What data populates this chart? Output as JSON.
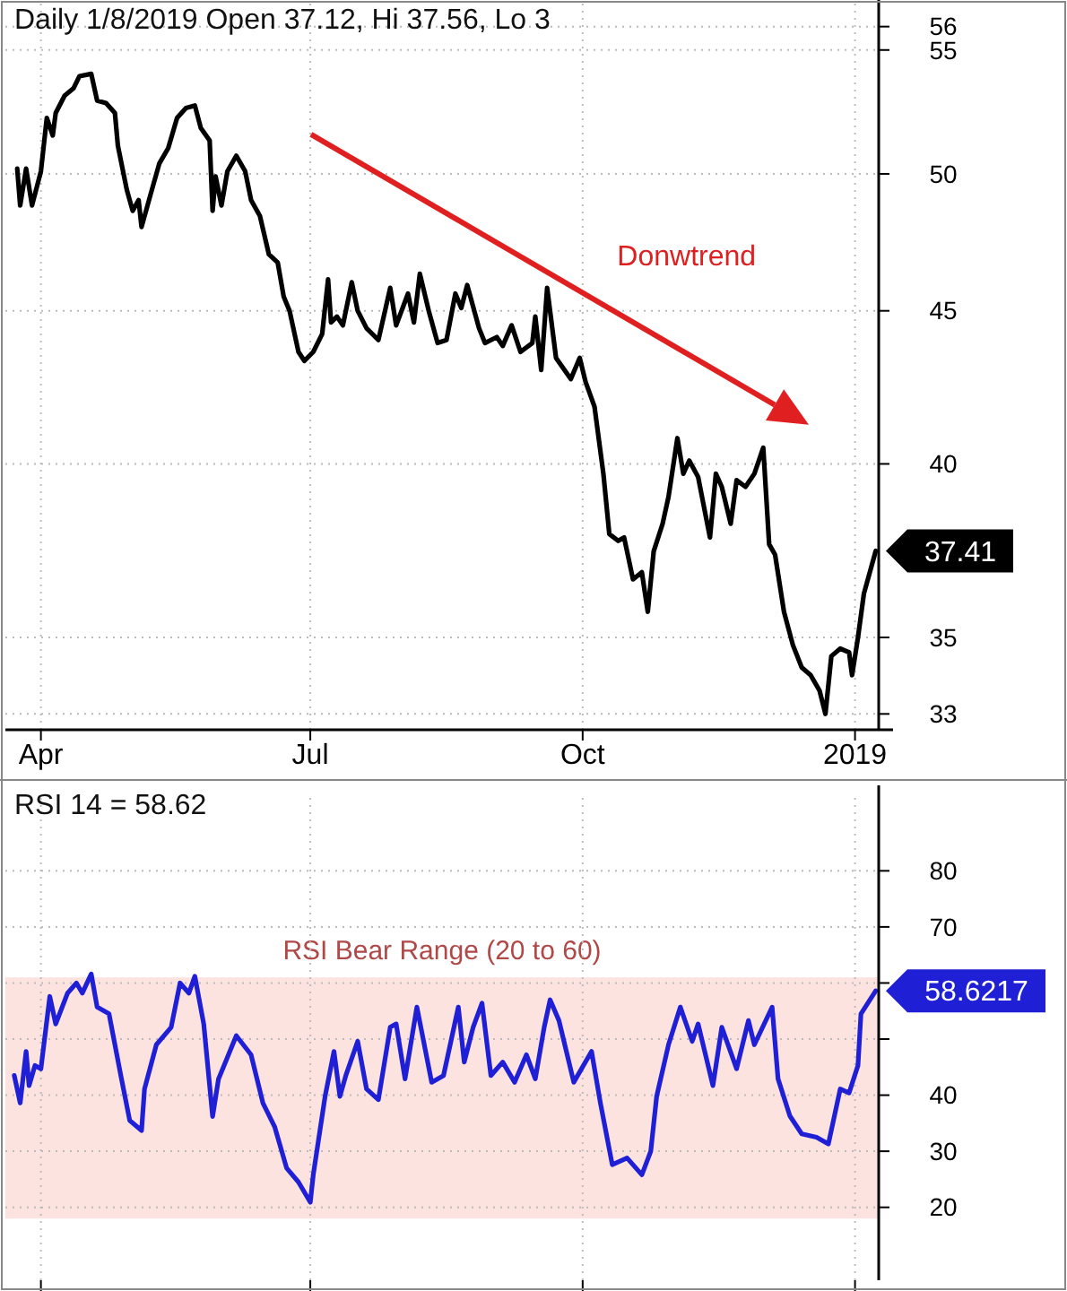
{
  "chart_data": [
    {
      "type": "line",
      "title": "Daily 1/8/2019 Open 37.12, Hi 37.56, Lo 3",
      "log": true,
      "grid": true,
      "xlim": [
        "2018-03-20",
        "2019-01-09"
      ],
      "xticks": [
        {
          "value": "2018-04-01",
          "label": "Apr"
        },
        {
          "value": "2018-07-01",
          "label": "Jul"
        },
        {
          "value": "2018-10-01",
          "label": "Oct"
        },
        {
          "value": "2019-01-01",
          "label": "2019"
        }
      ],
      "ylim": [
        32.6,
        57
      ],
      "yticks": [
        33,
        35,
        40,
        45,
        50,
        55,
        56
      ],
      "annotations": [
        "Donwtrend",
        {
          "text": "37.41",
          "x": "2019-01-08",
          "y": 37.41
        }
      ],
      "series": [
        {
          "color": "#000000",
          "x": [
            "2018-03-24",
            "2018-03-25",
            "2018-03-27",
            "2018-03-29",
            "2018-04-01",
            "2018-04-03",
            "2018-04-05",
            "2018-04-06",
            "2018-04-09",
            "2018-04-12",
            "2018-04-14",
            "2018-04-18",
            "2018-04-20",
            "2018-04-23",
            "2018-04-26",
            "2018-04-27",
            "2018-04-30",
            "2018-05-02",
            "2018-05-04",
            "2018-05-05",
            "2018-05-08",
            "2018-05-11",
            "2018-05-14",
            "2018-05-17",
            "2018-05-20",
            "2018-05-23",
            "2018-05-25",
            "2018-05-28",
            "2018-05-29",
            "2018-05-30",
            "2018-06-01",
            "2018-06-03",
            "2018-06-06",
            "2018-06-09",
            "2018-06-11",
            "2018-06-14",
            "2018-06-17",
            "2018-06-20",
            "2018-06-22",
            "2018-06-24",
            "2018-06-27",
            "2018-06-29",
            "2018-07-02",
            "2018-07-05",
            "2018-07-07",
            "2018-07-08",
            "2018-07-10",
            "2018-07-12",
            "2018-07-15",
            "2018-07-17",
            "2018-07-20",
            "2018-07-24",
            "2018-07-28",
            "2018-07-30",
            "2018-08-03",
            "2018-08-05",
            "2018-08-07",
            "2018-08-10",
            "2018-08-13",
            "2018-08-16",
            "2018-08-19",
            "2018-08-21",
            "2018-08-23",
            "2018-08-27",
            "2018-08-29",
            "2018-09-02",
            "2018-09-04",
            "2018-09-07",
            "2018-09-10",
            "2018-09-14",
            "2018-09-15",
            "2018-09-17",
            "2018-09-19",
            "2018-09-22",
            "2018-09-27",
            "2018-09-30",
            "2018-10-02",
            "2018-10-05",
            "2018-10-08",
            "2018-10-10",
            "2018-10-13",
            "2018-10-15",
            "2018-10-18",
            "2018-10-21",
            "2018-10-23",
            "2018-10-25",
            "2018-10-28",
            "2018-10-30",
            "2018-11-02",
            "2018-11-04",
            "2018-11-06",
            "2018-11-09",
            "2018-11-13",
            "2018-11-15",
            "2018-11-17",
            "2018-11-20",
            "2018-11-22",
            "2018-11-25",
            "2018-11-28",
            "2018-12-01",
            "2018-12-03",
            "2018-12-05",
            "2018-12-08",
            "2018-12-11",
            "2018-12-14",
            "2018-12-17",
            "2018-12-20",
            "2018-12-22",
            "2018-12-24",
            "2018-12-27",
            "2018-12-30",
            "2018-12-31",
            "2019-01-02",
            "2019-01-04",
            "2019-01-08"
          ],
          "values": [
            50.2,
            48.8,
            50.2,
            48.8,
            50.1,
            52.2,
            51.5,
            52.4,
            53.1,
            53.4,
            53.9,
            54.0,
            52.9,
            52.8,
            52.4,
            51.1,
            49.4,
            48.6,
            49.0,
            48.0,
            49.2,
            50.4,
            51.0,
            52.2,
            52.6,
            52.7,
            51.8,
            51.3,
            48.6,
            49.9,
            48.8,
            50.1,
            50.7,
            50.1,
            49.0,
            48.4,
            47.0,
            46.7,
            45.5,
            45.0,
            43.6,
            43.3,
            43.6,
            44.2,
            46.1,
            44.6,
            44.8,
            44.5,
            46.0,
            45.0,
            44.4,
            44.0,
            45.8,
            44.5,
            45.6,
            44.6,
            46.3,
            45.0,
            43.9,
            44.0,
            45.6,
            45.1,
            45.9,
            44.4,
            43.9,
            44.1,
            43.8,
            44.5,
            43.6,
            43.9,
            44.8,
            43.0,
            45.8,
            43.4,
            42.7,
            43.4,
            42.6,
            41.8,
            39.7,
            37.9,
            37.7,
            37.8,
            36.6,
            36.8,
            35.7,
            37.4,
            38.2,
            39.0,
            40.8,
            39.7,
            40.1,
            39.6,
            37.8,
            39.7,
            39.3,
            38.2,
            39.5,
            39.3,
            39.7,
            40.5,
            37.6,
            37.3,
            35.7,
            34.8,
            34.2,
            34.0,
            33.6,
            33.0,
            34.5,
            34.7,
            34.6,
            34.0,
            35.0,
            36.2,
            37.41
          ]
        }
      ]
    },
    {
      "type": "line",
      "title": "RSI 14 = 58.62",
      "grid": true,
      "tick_labels": "y",
      "xlim": [
        "2018-03-20",
        "2019-01-09"
      ],
      "xticks": [
        {
          "value": "2018-04-01",
          "label": null
        },
        {
          "value": "2018-07-01",
          "label": null
        },
        {
          "value": "2018-10-01",
          "label": null
        },
        {
          "value": "2019-01-01",
          "label": null
        }
      ],
      "ylim": [
        7,
        93
      ],
      "yticks": [
        20,
        30,
        40,
        {
          "value": 50,
          "label": null
        },
        {
          "value": 60,
          "label": null
        },
        70,
        80
      ],
      "bands": [
        {
          "axis": "y",
          "from": 18,
          "to": 61,
          "label": "RSI Bear Range (20 to 60)",
          "color": "#fde3df"
        }
      ],
      "annotations": [
        {
          "text": "58.6217",
          "x": "2019-01-08",
          "y": 58.6
        }
      ],
      "series": [
        {
          "color": "#1f1fd6",
          "x": [
            "2018-03-23",
            "2018-03-25",
            "2018-03-27",
            "2018-03-28",
            "2018-03-30",
            "2018-04-01",
            "2018-04-04",
            "2018-04-06",
            "2018-04-10",
            "2018-04-13",
            "2018-04-15",
            "2018-04-18",
            "2018-04-20",
            "2018-04-24",
            "2018-04-28",
            "2018-05-01",
            "2018-05-05",
            "2018-05-06",
            "2018-05-10",
            "2018-05-15",
            "2018-05-18",
            "2018-05-21",
            "2018-05-23",
            "2018-05-26",
            "2018-05-29",
            "2018-05-31",
            "2018-06-06",
            "2018-06-11",
            "2018-06-15",
            "2018-06-19",
            "2018-06-23",
            "2018-06-27",
            "2018-07-01",
            "2018-07-02",
            "2018-07-06",
            "2018-07-09",
            "2018-07-11",
            "2018-07-13",
            "2018-07-17",
            "2018-07-20",
            "2018-07-24",
            "2018-07-28",
            "2018-07-30",
            "2018-08-02",
            "2018-08-06",
            "2018-08-11",
            "2018-08-15",
            "2018-08-20",
            "2018-08-22",
            "2018-08-25",
            "2018-08-28",
            "2018-08-31",
            "2018-09-04",
            "2018-09-08",
            "2018-09-12",
            "2018-09-15",
            "2018-09-18",
            "2018-09-20",
            "2018-09-23",
            "2018-09-28",
            "2018-10-04",
            "2018-10-07",
            "2018-10-11",
            "2018-10-16",
            "2018-10-21",
            "2018-10-24",
            "2018-10-26",
            "2018-10-30",
            "2018-11-03",
            "2018-11-07",
            "2018-11-09",
            "2018-11-14",
            "2018-11-17",
            "2018-11-22",
            "2018-11-26",
            "2018-11-28",
            "2018-12-04",
            "2018-12-06",
            "2018-12-10",
            "2018-12-14",
            "2018-12-19",
            "2018-12-23",
            "2018-12-27",
            "2018-12-30",
            "2019-01-02",
            "2019-01-03",
            "2019-01-08"
          ],
          "values": [
            43.5,
            38.6,
            47.8,
            41.7,
            45.3,
            44.7,
            57.6,
            52.7,
            58.2,
            60.0,
            58.2,
            61.6,
            55.7,
            54.5,
            43.5,
            35.5,
            33.7,
            41.1,
            49.0,
            52.1,
            60.0,
            58.2,
            61.2,
            52.7,
            36.2,
            42.9,
            50.6,
            47.2,
            38.6,
            34.3,
            27.0,
            24.5,
            20.9,
            25.8,
            39.8,
            47.8,
            39.8,
            43.5,
            49.6,
            41.1,
            39.2,
            52.1,
            52.7,
            42.9,
            55.7,
            42.3,
            43.5,
            55.7,
            45.9,
            52.1,
            56.4,
            43.5,
            45.9,
            42.3,
            47.2,
            42.9,
            52.1,
            57.0,
            53.3,
            42.3,
            47.8,
            38.6,
            27.6,
            28.8,
            25.8,
            30.0,
            39.8,
            49.0,
            55.7,
            49.6,
            52.7,
            41.7,
            52.1,
            44.7,
            53.3,
            49.0,
            55.7,
            42.9,
            36.3,
            33.1,
            32.5,
            31.3,
            41.1,
            40.4,
            45.3,
            54.5,
            58.6
          ]
        }
      ]
    }
  ]
}
